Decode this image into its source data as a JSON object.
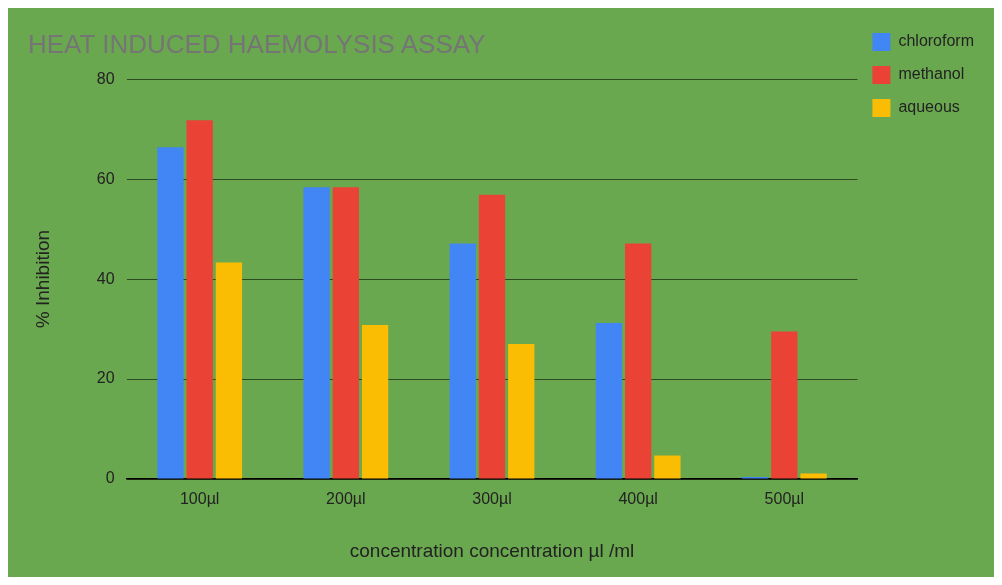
{
  "chart_data": {
    "type": "bar",
    "title": "HEAT INDUCED HAEMOLYSIS ASSAY",
    "xlabel": "concentration concentration µl /ml",
    "ylabel": "% Inhibition",
    "categories": [
      "100µl",
      "200µl",
      "300µl",
      "400µl",
      "500µl"
    ],
    "series": [
      {
        "name": "chloroform",
        "color": "#4285f4",
        "values": [
          66.4,
          58.4,
          47.1,
          31.2,
          0.4
        ]
      },
      {
        "name": "methanol",
        "color": "#ea4335",
        "values": [
          71.8,
          58.4,
          56.9,
          47.1,
          29.5
        ]
      },
      {
        "name": "aqueous",
        "color": "#fbbc04",
        "values": [
          43.3,
          30.8,
          27.0,
          4.7,
          1.1
        ]
      }
    ],
    "ylim": [
      0,
      80
    ],
    "yticks": [
      0,
      20,
      40,
      60,
      80
    ],
    "grid": "y",
    "legend": "top right"
  }
}
